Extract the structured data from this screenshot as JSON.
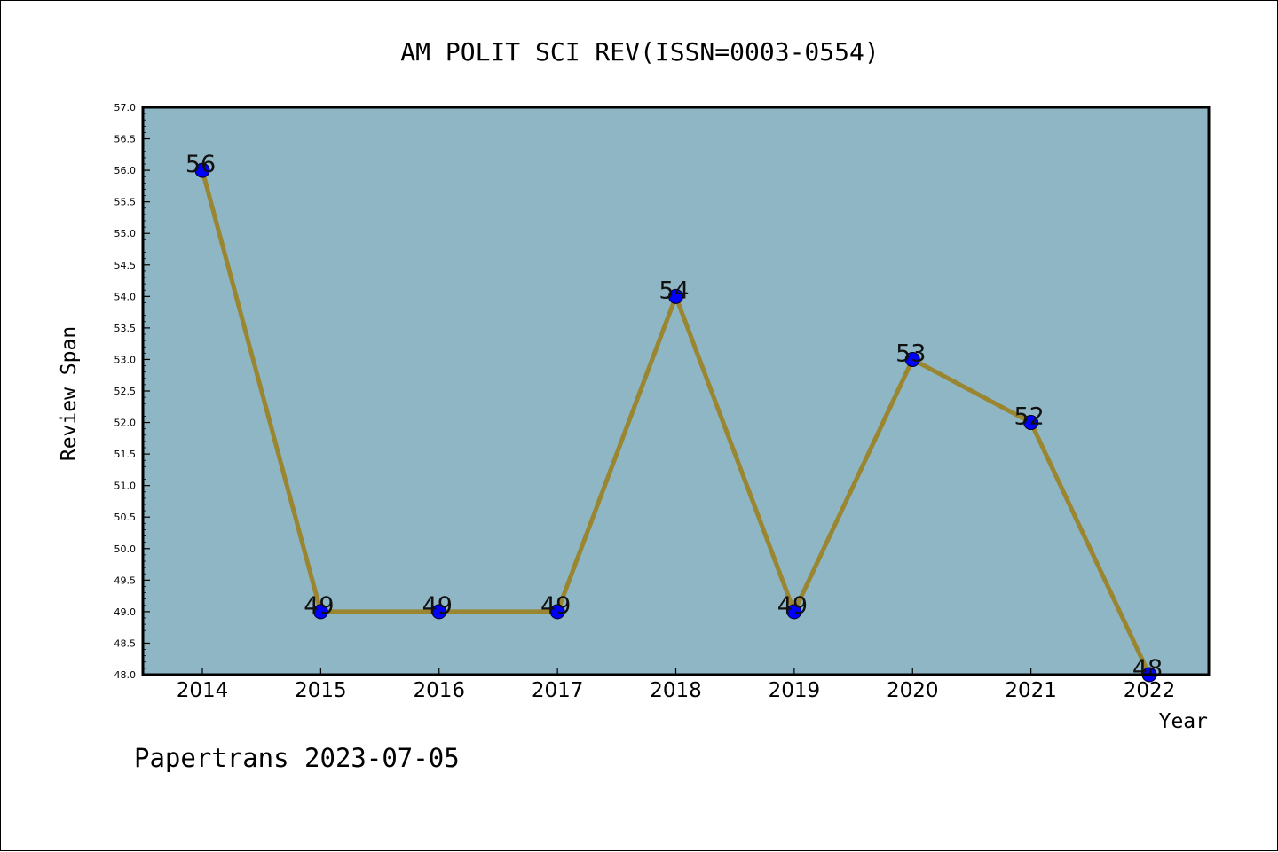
{
  "chart_data": {
    "type": "line",
    "title": "AM POLIT SCI REV(ISSN=0003-0554)",
    "xlabel": "Year",
    "ylabel": "Review Span",
    "categories": [
      "2014",
      "2015",
      "2016",
      "2017",
      "2018",
      "2019",
      "2020",
      "2021",
      "2022"
    ],
    "values": [
      56,
      49,
      49,
      49,
      54,
      49,
      53,
      52,
      48
    ],
    "data_labels": [
      "56",
      "49",
      "49",
      "49",
      "54",
      "49",
      "53",
      "52",
      "48"
    ],
    "ylim": [
      48.0,
      57.0
    ],
    "y_ticks": [
      "48.0",
      "48.5",
      "49.0",
      "49.5",
      "50.0",
      "50.5",
      "51.0",
      "51.5",
      "52.0",
      "52.5",
      "53.0",
      "53.5",
      "54.0",
      "54.5",
      "55.0",
      "55.5",
      "56.0",
      "56.5",
      "57.0"
    ],
    "grid": false,
    "legend": "none",
    "colors": {
      "plot_background": "#8fb6c4",
      "line": "#9a8530",
      "marker": "#0000ff"
    }
  },
  "footer": {
    "watermark": "Papertrans 2023-07-05"
  }
}
